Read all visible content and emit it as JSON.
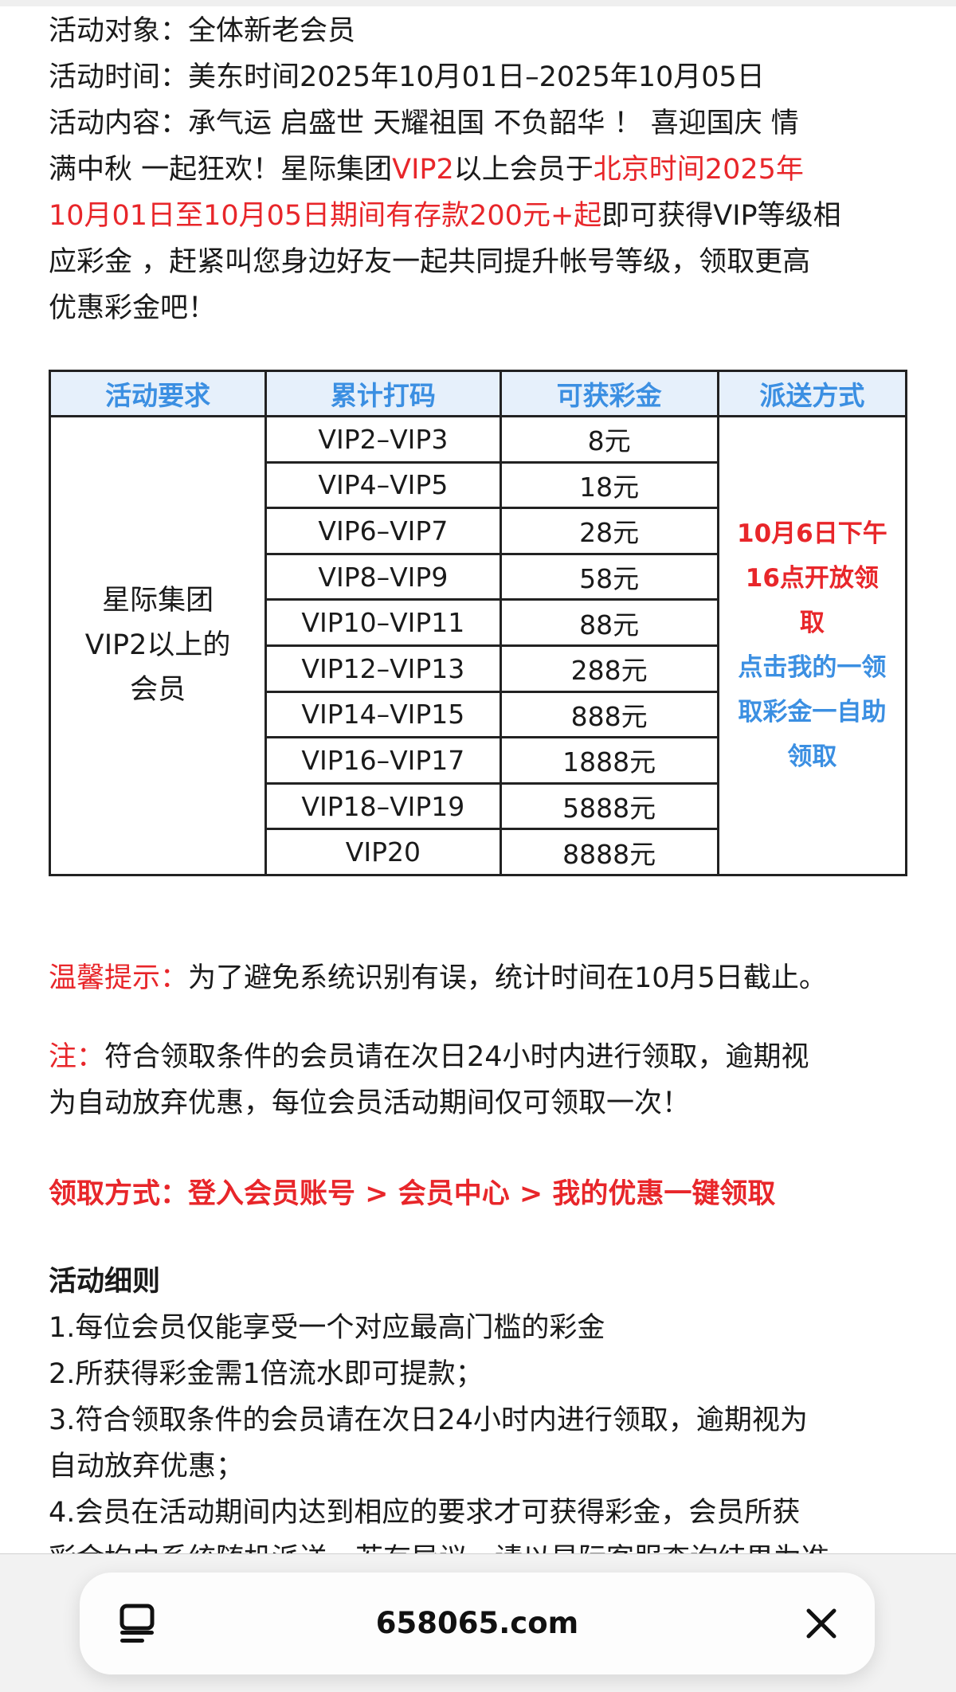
{
  "intro": {
    "lines": [
      [
        {
          "t": "活动对象：全体新老会员",
          "red": false
        }
      ],
      [
        {
          "t": "活动时间：美东时间2025年10月01日–2025年10月05日",
          "red": false
        }
      ],
      [
        {
          "t": "活动内容：承气运 启盛世 天耀祖国 不负韶华 ！ 喜迎国庆 情",
          "red": false
        }
      ],
      [
        {
          "t": "满中秋 一起狂欢！星际集团",
          "red": false
        },
        {
          "t": "VIP2",
          "red": true
        },
        {
          "t": "以上会员于",
          "red": false
        },
        {
          "t": "北京时间2025年",
          "red": true
        }
      ],
      [
        {
          "t": "10月01日至10月05日期间有存款200元+起",
          "red": true
        },
        {
          "t": "即可获得VIP等级相",
          "red": false
        }
      ],
      [
        {
          "t": "应彩金 ，赶紧叫您身边好友一起共同提升帐号等级，领取更高",
          "red": false
        }
      ],
      [
        {
          "t": "优惠彩金吧！",
          "red": false
        }
      ]
    ]
  },
  "table": {
    "headers": [
      "活动要求",
      "累计打码",
      "可获彩金",
      "派送方式"
    ],
    "requirement": [
      "星际集团",
      "VIP2以上的",
      "会员"
    ],
    "rows": [
      {
        "level": "VIP2–VIP3",
        "bonus": "8元"
      },
      {
        "level": "VIP4–VIP5",
        "bonus": "18元"
      },
      {
        "level": "VIP6–VIP7",
        "bonus": "28元"
      },
      {
        "level": "VIP8–VIP9",
        "bonus": "58元"
      },
      {
        "level": "VIP10–VIP11",
        "bonus": "88元"
      },
      {
        "level": "VIP12–VIP13",
        "bonus": "288元"
      },
      {
        "level": "VIP14–VIP15",
        "bonus": "888元"
      },
      {
        "level": "VIP16–VIP17",
        "bonus": "1888元"
      },
      {
        "level": "VIP18–VIP19",
        "bonus": "5888元"
      },
      {
        "level": "VIP20",
        "bonus": "8888元"
      }
    ],
    "method_red": [
      "10月6日下午",
      "16点开放领",
      "取"
    ],
    "method_blue": [
      "点击我的一领",
      "取彩金一自助",
      "领取"
    ]
  },
  "tip": {
    "label": "温馨提示：",
    "text": "为了避免系统识别有误，统计时间在10月5日截止。"
  },
  "note": {
    "label": "注：",
    "line1": "符合领取条件的会员请在次日24小时内进行领取，逾期视",
    "line2": "为自动放弃优惠，每位会员活动期间仅可领取一次！"
  },
  "claim": {
    "text": "领取方式：登入会员账号 > 会员中心 > 我的优惠一键领取"
  },
  "rules": {
    "title": "活动细则",
    "lines": [
      "1.每位会员仅能享受一个对应最高门槛的彩金",
      "2.所获得彩金需1倍流水即可提款；",
      "3.符合领取条件的会员请在次日24小时内进行领取，逾期视为",
      "自动放弃优惠；",
      "4.会员在活动期间内达到相应的要求才可获得彩金，会员所获",
      "彩金均由系统随机派送，若有异议，请以星际客服查询结果为准"
    ]
  },
  "browser": {
    "url": "658065.com",
    "icons": [
      "tabs-icon",
      "close-icon"
    ]
  },
  "colors": {
    "red": "#e8262a",
    "blue": "#3b8fe2",
    "header_bg": "#e6f0fb"
  }
}
